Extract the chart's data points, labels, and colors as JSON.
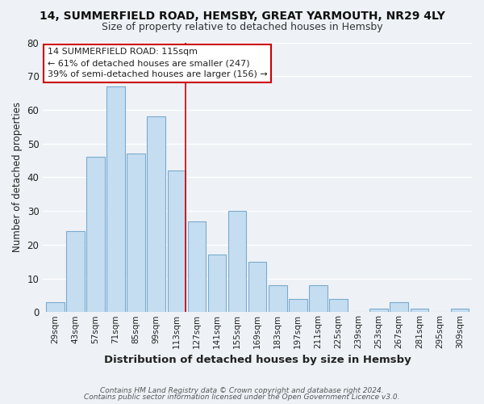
{
  "title": "14, SUMMERFIELD ROAD, HEMSBY, GREAT YARMOUTH, NR29 4LY",
  "subtitle": "Size of property relative to detached houses in Hemsby",
  "xlabel": "Distribution of detached houses by size in Hemsby",
  "ylabel": "Number of detached properties",
  "bar_labels": [
    "29sqm",
    "43sqm",
    "57sqm",
    "71sqm",
    "85sqm",
    "99sqm",
    "113sqm",
    "127sqm",
    "141sqm",
    "155sqm",
    "169sqm",
    "183sqm",
    "197sqm",
    "211sqm",
    "225sqm",
    "239sqm",
    "253sqm",
    "267sqm",
    "281sqm",
    "295sqm",
    "309sqm"
  ],
  "bar_values": [
    3,
    24,
    46,
    67,
    47,
    58,
    42,
    27,
    17,
    30,
    15,
    8,
    4,
    8,
    4,
    0,
    1,
    3,
    1,
    0,
    1
  ],
  "bar_color": "#c5ddf0",
  "bar_edge_color": "#7aaacf",
  "highlight_index": 6,
  "vline_color": "#cc0000",
  "ylim": [
    0,
    80
  ],
  "yticks": [
    0,
    10,
    20,
    30,
    40,
    50,
    60,
    70,
    80
  ],
  "annotation_title": "14 SUMMERFIELD ROAD: 115sqm",
  "annotation_line1": "← 61% of detached houses are smaller (247)",
  "annotation_line2": "39% of semi-detached houses are larger (156) →",
  "annotation_box_color": "#ffffff",
  "annotation_box_edge": "#cc0000",
  "footer1": "Contains HM Land Registry data © Crown copyright and database right 2024.",
  "footer2": "Contains public sector information licensed under the Open Government Licence v3.0.",
  "background_color": "#eef2f7",
  "grid_color": "#ffffff",
  "title_color": "#111111",
  "subtitle_color": "#333333",
  "label_color": "#222222",
  "tick_color": "#222222"
}
